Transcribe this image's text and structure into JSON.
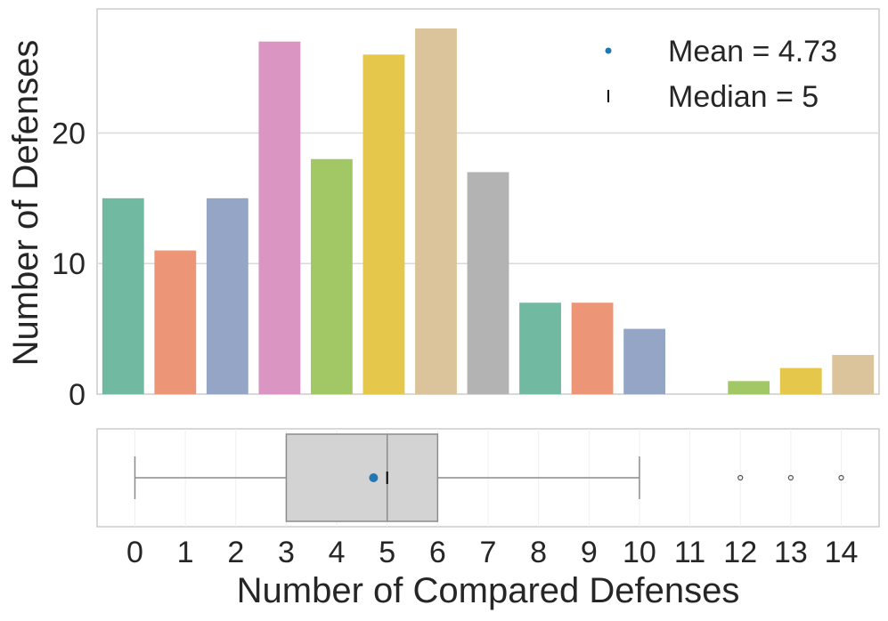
{
  "chart_data": [
    {
      "type": "bar",
      "categories": [
        "0",
        "1",
        "2",
        "3",
        "4",
        "5",
        "6",
        "7",
        "8",
        "9",
        "10",
        "11",
        "12",
        "13",
        "14"
      ],
      "values": [
        15,
        11,
        15,
        27,
        18,
        26,
        28,
        17,
        7,
        7,
        5,
        0,
        1,
        2,
        3
      ],
      "colors": [
        "#72b9a1",
        "#ec9677",
        "#94a5c5",
        "#db95c2",
        "#a2c765",
        "#e4c74b",
        "#dbc39b",
        "#b3b3b3",
        "#72b9a1",
        "#ec9677",
        "#94a5c5",
        "#db95c2",
        "#a2c765",
        "#e4c74b",
        "#dbc39b"
      ],
      "ylabel": "Number of Defenses",
      "ylim": [
        0,
        29.5
      ],
      "yticks": [
        0,
        10,
        20
      ],
      "grid": true,
      "legend": {
        "placement": "top-right",
        "entries": [
          {
            "label": "Mean = 4.73",
            "marker": "dot",
            "color": "#1f77b4"
          },
          {
            "label": "Median = 5",
            "marker": "bar",
            "color": "#000000"
          }
        ]
      }
    },
    {
      "type": "boxplot",
      "xlabel": "Number of Compared Defenses",
      "xlim": [
        -0.75,
        14.75
      ],
      "xticks": [
        "0",
        "1",
        "2",
        "3",
        "4",
        "5",
        "6",
        "7",
        "8",
        "9",
        "10",
        "11",
        "12",
        "13",
        "14"
      ],
      "whisker_low": 0,
      "q1": 3,
      "median": 5,
      "q3": 6,
      "whisker_high": 10,
      "mean": 4.73,
      "outliers": [
        12,
        13,
        14
      ],
      "box_color": "#d3d3d3",
      "mean_color": "#1f77b4"
    }
  ]
}
